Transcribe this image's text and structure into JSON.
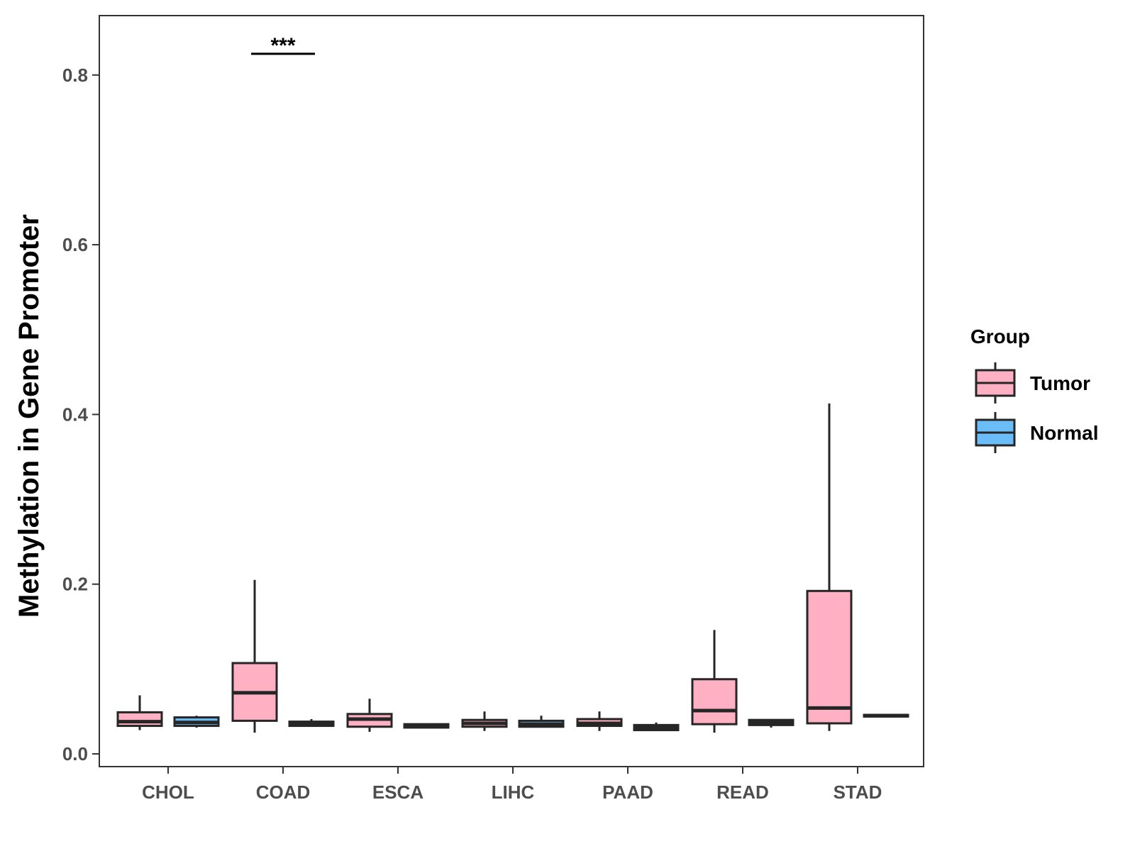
{
  "chart_data": {
    "type": "boxplot",
    "title": "",
    "xlabel": "",
    "ylabel": "Methylation in Gene Promoter",
    "ylim": [
      -0.015,
      0.87
    ],
    "yticks": [
      0.0,
      0.2,
      0.4,
      0.6,
      0.8
    ],
    "ytick_labels": [
      "0.0",
      "0.2",
      "0.4",
      "0.6",
      "0.8"
    ],
    "categories": [
      "CHOL",
      "COAD",
      "ESCA",
      "LIHC",
      "PAAD",
      "READ",
      "STAD"
    ],
    "legend": {
      "title": "Group",
      "position": "right",
      "entries": [
        {
          "name": "Tumor",
          "color": "#FFB0C2"
        },
        {
          "name": "Normal",
          "color": "#6BBDF7"
        }
      ]
    },
    "series": [
      {
        "name": "Tumor",
        "color": "#FFB0C2",
        "boxes": [
          {
            "category": "CHOL",
            "min": 0.028,
            "q1": 0.033,
            "median": 0.038,
            "q3": 0.049,
            "max": 0.069
          },
          {
            "category": "COAD",
            "min": 0.025,
            "q1": 0.039,
            "median": 0.072,
            "q3": 0.107,
            "max": 0.205
          },
          {
            "category": "ESCA",
            "min": 0.026,
            "q1": 0.032,
            "median": 0.041,
            "q3": 0.047,
            "max": 0.065
          },
          {
            "category": "LIHC",
            "min": 0.027,
            "q1": 0.032,
            "median": 0.036,
            "q3": 0.04,
            "max": 0.05
          },
          {
            "category": "PAAD",
            "min": 0.027,
            "q1": 0.033,
            "median": 0.036,
            "q3": 0.041,
            "max": 0.05
          },
          {
            "category": "READ",
            "min": 0.025,
            "q1": 0.035,
            "median": 0.051,
            "q3": 0.088,
            "max": 0.146
          },
          {
            "category": "STAD",
            "min": 0.027,
            "q1": 0.036,
            "median": 0.054,
            "q3": 0.192,
            "max": 0.413
          }
        ]
      },
      {
        "name": "Normal",
        "color": "#6BBDF7",
        "boxes": [
          {
            "category": "CHOL",
            "min": 0.031,
            "q1": 0.033,
            "median": 0.037,
            "q3": 0.043,
            "max": 0.045
          },
          {
            "category": "COAD",
            "min": 0.032,
            "q1": 0.033,
            "median": 0.036,
            "q3": 0.038,
            "max": 0.041
          },
          {
            "category": "ESCA",
            "min": 0.03,
            "q1": 0.031,
            "median": 0.033,
            "q3": 0.035,
            "max": 0.036
          },
          {
            "category": "LIHC",
            "min": 0.031,
            "q1": 0.032,
            "median": 0.035,
            "q3": 0.039,
            "max": 0.045
          },
          {
            "category": "PAAD",
            "min": 0.027,
            "q1": 0.028,
            "median": 0.031,
            "q3": 0.034,
            "max": 0.037
          },
          {
            "category": "READ",
            "min": 0.031,
            "q1": 0.034,
            "median": 0.037,
            "q3": 0.04,
            "max": 0.041
          },
          {
            "category": "STAD",
            "min": 0.043,
            "q1": 0.044,
            "median": 0.045,
            "q3": 0.046,
            "max": 0.047
          }
        ]
      }
    ],
    "annotations": [
      {
        "category": "COAD",
        "text": "***",
        "y": 0.825
      }
    ]
  }
}
